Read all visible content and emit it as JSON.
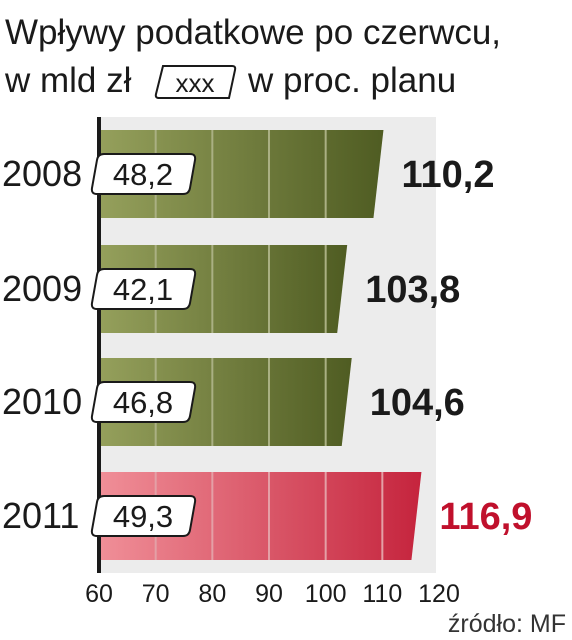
{
  "chart_data": {
    "type": "bar",
    "title": "Wpływy podatkowe po czerwcu,",
    "subtitle": "w mld zł",
    "legend": {
      "box_label": "xxx",
      "text": "w proc. planu"
    },
    "categories": [
      "2008",
      "2009",
      "2010",
      "2011"
    ],
    "amounts": [
      "48,2",
      "42,1",
      "46,8",
      "49,3"
    ],
    "percent_labels": [
      "110,2",
      "103,8",
      "104,6",
      "116,9"
    ],
    "values": [
      110.2,
      103.8,
      104.6,
      116.9
    ],
    "highlight_index": 3,
    "xlim": [
      60,
      120
    ],
    "xticks": [
      60,
      70,
      80,
      90,
      100,
      110,
      120
    ],
    "grid": true,
    "source": "źródło: MF",
    "colors": {
      "bar_olive_dark": "#4f5c22",
      "bar_olive_light": "#95a05c",
      "bar_red_dark": "#c5243d",
      "bar_red_light": "#f08f98",
      "highlight_text": "#c0102c",
      "text": "#1a1a1a"
    }
  }
}
